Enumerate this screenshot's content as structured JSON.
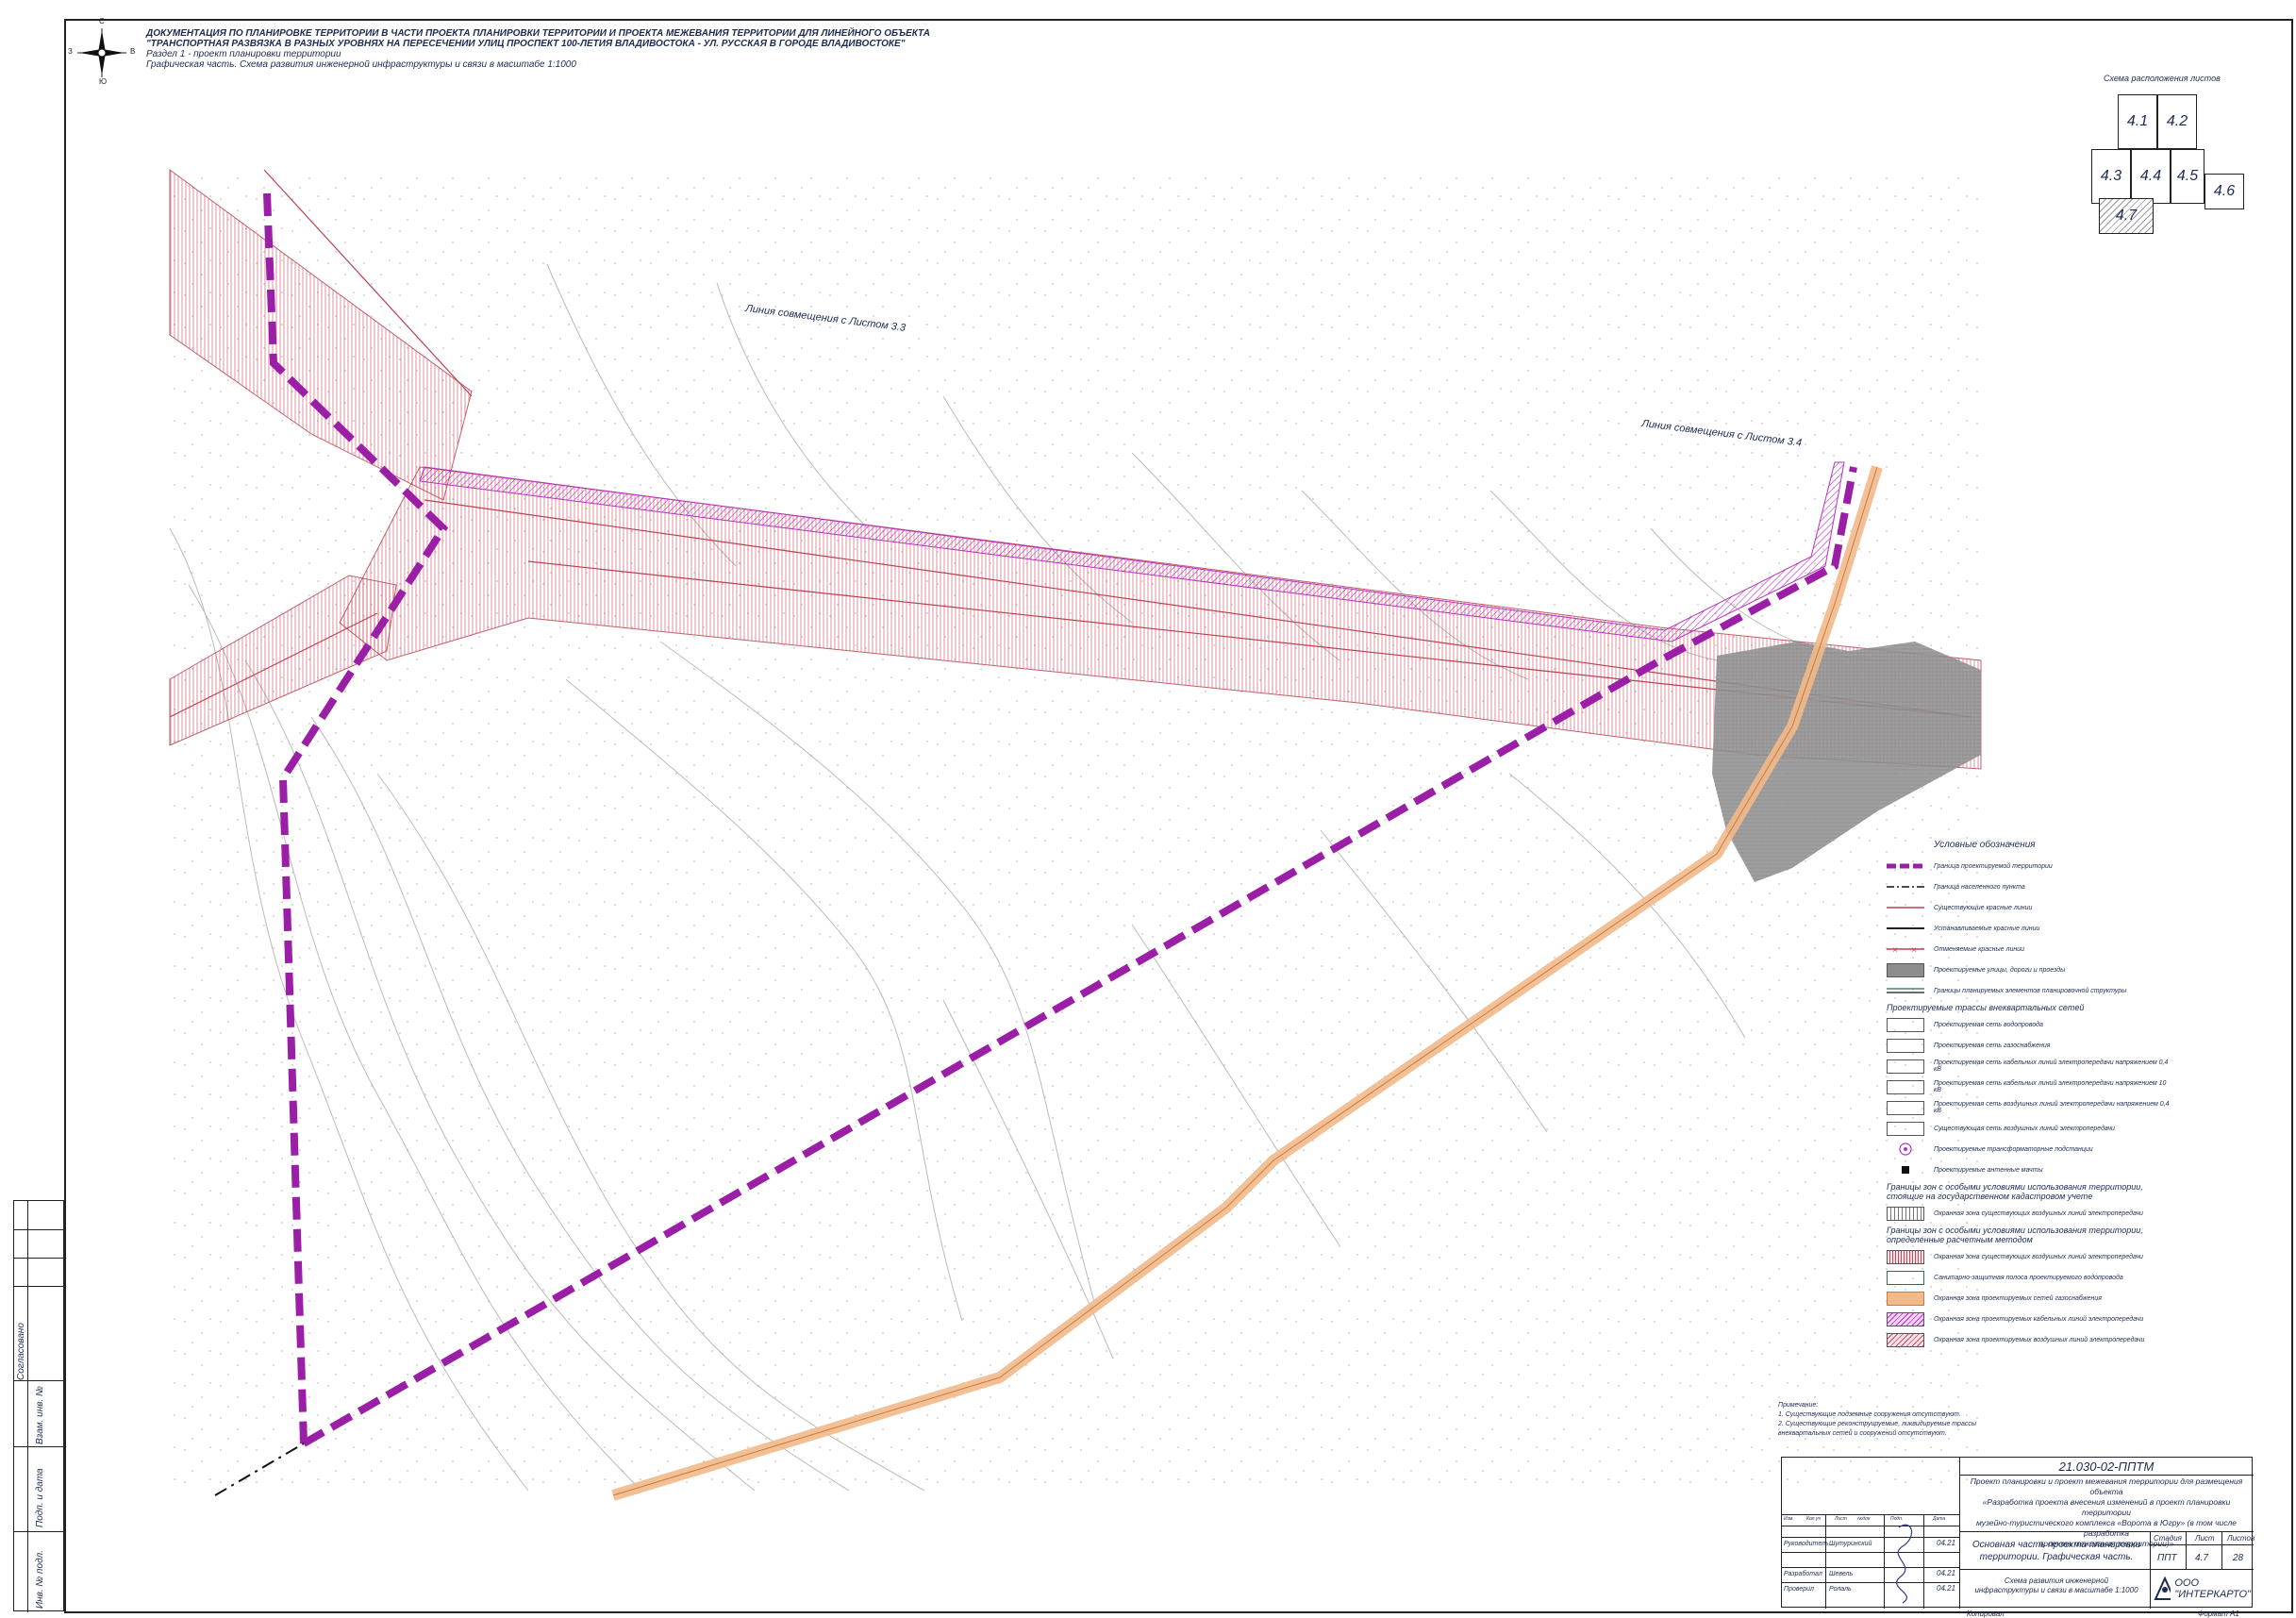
{
  "header": {
    "line1": "ДОКУМЕНТАЦИЯ ПО ПЛАНИРОВКЕ ТЕРРИТОРИИ В ЧАСТИ ПРОЕКТА ПЛАНИРОВКИ ТЕРРИТОРИИ И ПРОЕКТА МЕЖЕВАНИЯ ТЕРРИТОРИИ ДЛЯ ЛИНЕЙНОГО ОБЪЕКТА",
    "line2": "\"ТРАНСПОРТНАЯ РАЗВЯЗКА В РАЗНЫХ УРОВНЯХ НА ПЕРЕСЕЧЕНИИ УЛИЦ ПРОСПЕКТ 100-ЛЕТИЯ ВЛАДИВОСТОКА - УЛ. РУССКАЯ В ГОРОДЕ ВЛАДИВОСТОКЕ\"",
    "line3": "Раздел 1 - проект планировки территории",
    "line4": "Графическая часть. Схема развития инженерной инфраструктуры и связи в масштабе 1:1000"
  },
  "compass": {
    "n": "С",
    "s": "Ю",
    "w": "З",
    "e": "В"
  },
  "map": {
    "match_line_1": "Линия совмещения с Листом 3.3",
    "match_line_2": "Линия совмещения с Листом 3.4"
  },
  "keyplan": {
    "title": "Схема расположения листов",
    "sheets": [
      "4.1",
      "4.2",
      "4.3",
      "4.4",
      "4.5",
      "4.6",
      "4.7"
    ],
    "current": "4.7"
  },
  "legend": {
    "title": "Условные обозначения",
    "items": [
      {
        "label": "Граница проектируемой территории"
      },
      {
        "label": "Граница населенного пункта"
      },
      {
        "label": "Существующие красные линии"
      },
      {
        "label": "Устанавливаемые красные линии"
      },
      {
        "label": "Отменяемые красные линии"
      },
      {
        "label": "Проектируемые улицы, дороги и проезды"
      },
      {
        "label": "Границы планируемых элементов планировочной структуры"
      }
    ],
    "group1": "Проектируемые трассы внеквартальных сетей",
    "items2": [
      {
        "label": "Проектируемая сеть водопровода"
      },
      {
        "label": "Проектируемая сеть газоснабжения"
      },
      {
        "label": "Проектируемая сеть кабельных линий электропередачи напряжением 0,4 кВ"
      },
      {
        "label": "Проектируемая сеть кабельных линий электропередачи напряжением 10 кВ"
      },
      {
        "label": "Проектируемая сеть воздушных линий электропередачи напряжением 0,4 кВ"
      },
      {
        "label": "Существующая сеть воздушных линий электропередачи"
      },
      {
        "label": "Проектируемые трансформаторные подстанции"
      },
      {
        "label": "Проектируемые антенные мачты"
      }
    ],
    "group2": "Границы зон с особыми условиями использования территории, стоящие на государственном кадастровом учете",
    "items3": [
      {
        "label": "Охранная зона существующих воздушных линий электропередачи"
      }
    ],
    "group3": "Границы зон с особыми условиями использования территории, определенные расчетным методом",
    "items4": [
      {
        "label": "Охранная зона существующих воздушных линий электропередачи"
      },
      {
        "label": "Санитарно-защитная полоса проектируемого водопровода"
      },
      {
        "label": "Охранная зона проектируемых сетей газоснабжения"
      },
      {
        "label": "Охранная зона проектируемых кабельных линий электропередачи"
      },
      {
        "label": "Охранная зона проектируемых воздушных линий электропередачи"
      }
    ]
  },
  "notes": {
    "title": "Примечание:",
    "n1": "1. Существующие подземные сооружения отсутствуют.",
    "n2": "2. Существующие реконструируемые, ликвидируемые трассы",
    "n3": "внеквартальных сетей и сооружений отсутствуют."
  },
  "stamp": {
    "code": "21.030-02-ППТМ",
    "desc1": "Проект планировки и проект межевания территории для размещения объекта",
    "desc2": "«Разработка проекта внесения изменений в проект планировки территории",
    "desc3": "музейно-туристического комплекса «Ворота в Югру» (в том числе разработка",
    "desc4": "проекта межевания территории)»",
    "section1": "Основная часть проекта планировки",
    "section2": "территории. Графическая часть.",
    "sheet_title1": "Схема развития инженерной",
    "sheet_title2": "инфраструктуры и связи в масштабе 1:1000",
    "h_stage": "Стадия",
    "h_sheet": "Лист",
    "h_sheets": "Листов",
    "stage": "ППТ",
    "sheet": "4.7",
    "sheets": "28",
    "company": "ООО \"ИНТЕРКАРТО\"",
    "roles": [
      {
        "role": "Руководитель",
        "name": "Шутуринский",
        "date": "04.21"
      },
      {
        "role": "Разработал",
        "name": "Шевель",
        "date": "04.21"
      },
      {
        "role": "Проверил",
        "name": "Ролаль",
        "date": "04.21"
      }
    ],
    "cols": [
      "Изм.",
      "Кол.уч",
      "Лист",
      "№док",
      "Подп.",
      "Дата"
    ],
    "copied": "Копировал",
    "format": "Формат А1"
  },
  "side": {
    "agreed": "Согласовано",
    "inv_replace": "Взам. инв. №",
    "sign_date": "Подп. и дата",
    "inv_orig": "Инв. № подл."
  },
  "colors": {
    "boundary": "#9b1fa6",
    "red_line": "#b8434f",
    "gas_zone": "#f2b98a",
    "road": "#7d7d7d",
    "hatch": "#c9485e"
  }
}
